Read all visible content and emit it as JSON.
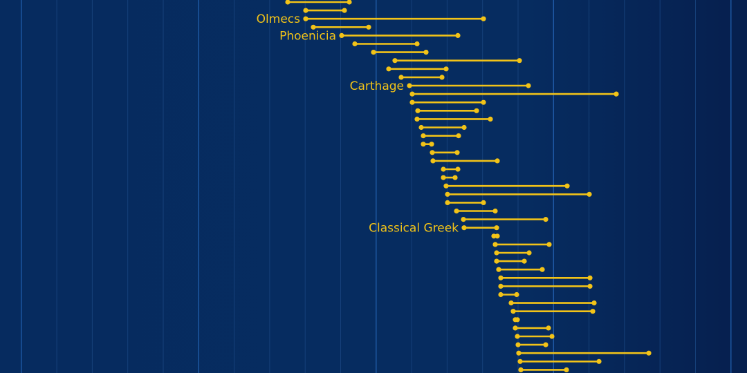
{
  "chart_data": {
    "type": "dumbbell",
    "title": "",
    "xlabel": "",
    "ylabel": "",
    "grid": "vertical lines",
    "colors": {
      "background": "#062b5f",
      "mark": "#f2c318",
      "grid_minor": "#16407a",
      "grid_major": "#1f5aa6",
      "label": "#f2c318"
    },
    "domain_note": "timeline ranges read in horizontal chart units (x from 0 to 1080)",
    "xlim": [
      0,
      1080
    ],
    "rows": [
      {
        "label": "",
        "start": 416,
        "end": 505
      },
      {
        "label": "",
        "start": 442,
        "end": 498
      },
      {
        "label": "Olmecs",
        "start": 442,
        "end": 699
      },
      {
        "label": "",
        "start": 453,
        "end": 533
      },
      {
        "label": "Phoenicia",
        "start": 494,
        "end": 662
      },
      {
        "label": "",
        "start": 513,
        "end": 603
      },
      {
        "label": "",
        "start": 540,
        "end": 616
      },
      {
        "label": "",
        "start": 571,
        "end": 751
      },
      {
        "label": "",
        "start": 562,
        "end": 645
      },
      {
        "label": "",
        "start": 580,
        "end": 639
      },
      {
        "label": "Carthage",
        "start": 592,
        "end": 764
      },
      {
        "label": "",
        "start": 596,
        "end": 891
      },
      {
        "label": "",
        "start": 596,
        "end": 699
      },
      {
        "label": "",
        "start": 604,
        "end": 689
      },
      {
        "label": "",
        "start": 603,
        "end": 709
      },
      {
        "label": "",
        "start": 609,
        "end": 671
      },
      {
        "label": "",
        "start": 612,
        "end": 663
      },
      {
        "label": "",
        "start": 612,
        "end": 624
      },
      {
        "label": "",
        "start": 625,
        "end": 661
      },
      {
        "label": "",
        "start": 626,
        "end": 719
      },
      {
        "label": "",
        "start": 641,
        "end": 662
      },
      {
        "label": "",
        "start": 641,
        "end": 658
      },
      {
        "label": "",
        "start": 645,
        "end": 820
      },
      {
        "label": "",
        "start": 647,
        "end": 852
      },
      {
        "label": "",
        "start": 647,
        "end": 699
      },
      {
        "label": "",
        "start": 660,
        "end": 716
      },
      {
        "label": "",
        "start": 670,
        "end": 789
      },
      {
        "label": "Classical Greek",
        "start": 671,
        "end": 718
      },
      {
        "label": "",
        "start": 714,
        "end": 719
      },
      {
        "label": "",
        "start": 716,
        "end": 794
      },
      {
        "label": "",
        "start": 718,
        "end": 765
      },
      {
        "label": "",
        "start": 718,
        "end": 758
      },
      {
        "label": "",
        "start": 721,
        "end": 784
      },
      {
        "label": "",
        "start": 724,
        "end": 853
      },
      {
        "label": "",
        "start": 724,
        "end": 853
      },
      {
        "label": "",
        "start": 724,
        "end": 747
      },
      {
        "label": "",
        "start": 739,
        "end": 859
      },
      {
        "label": "",
        "start": 742,
        "end": 857
      },
      {
        "label": "",
        "start": 745,
        "end": 748
      },
      {
        "label": "",
        "start": 745,
        "end": 793
      },
      {
        "label": "",
        "start": 748,
        "end": 798
      },
      {
        "label": "",
        "start": 749,
        "end": 789
      },
      {
        "label": "",
        "start": 750,
        "end": 938
      },
      {
        "label": "",
        "start": 752,
        "end": 866
      },
      {
        "label": "",
        "start": 753,
        "end": 819
      }
    ]
  }
}
